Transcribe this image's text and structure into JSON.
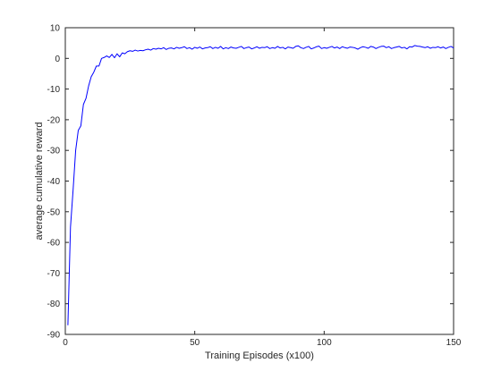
{
  "chart_data": {
    "type": "line",
    "title": "",
    "xlabel": "Training Episodes (x100)",
    "ylabel": "average cumulative reward",
    "xlim": [
      0,
      150
    ],
    "ylim": [
      -90,
      10
    ],
    "xticks": [
      0,
      50,
      100,
      150
    ],
    "yticks": [
      10,
      0,
      -10,
      -20,
      -30,
      -40,
      -50,
      -60,
      -70,
      -80,
      -90
    ],
    "grid": false,
    "legend": "none",
    "series": [
      {
        "color": "#0000ff",
        "x": [
          1,
          2,
          3,
          4,
          5,
          6,
          7,
          8,
          9,
          10,
          11,
          12,
          13,
          14,
          15,
          16,
          17,
          18,
          19,
          20,
          21,
          22,
          23,
          24,
          25,
          26,
          27,
          28,
          29,
          30,
          31,
          32,
          33,
          34,
          35,
          36,
          37,
          38,
          39,
          40,
          41,
          42,
          43,
          44,
          45,
          46,
          47,
          48,
          49,
          50,
          51,
          52,
          53,
          54,
          55,
          56,
          57,
          58,
          59,
          60,
          61,
          62,
          63,
          64,
          65,
          66,
          67,
          68,
          69,
          70,
          71,
          72,
          73,
          74,
          75,
          76,
          77,
          78,
          79,
          80,
          81,
          82,
          83,
          84,
          85,
          86,
          87,
          88,
          89,
          90,
          91,
          92,
          93,
          94,
          95,
          96,
          97,
          98,
          99,
          100,
          101,
          102,
          103,
          104,
          105,
          106,
          107,
          108,
          109,
          110,
          111,
          112,
          113,
          114,
          115,
          116,
          117,
          118,
          119,
          120,
          121,
          122,
          123,
          124,
          125,
          126,
          127,
          128,
          129,
          130,
          131,
          132,
          133,
          134,
          135,
          136,
          137,
          138,
          139,
          140,
          141,
          142,
          143,
          144,
          145,
          146,
          147,
          148,
          149,
          150
        ],
        "y": [
          -87,
          -55,
          -43,
          -30,
          -23.5,
          -22,
          -15,
          -13,
          -9,
          -6,
          -4.5,
          -2.5,
          -2.5,
          0,
          0.3,
          0.8,
          0.3,
          1.3,
          0.2,
          1.5,
          0.5,
          1.8,
          1.5,
          2.2,
          2.5,
          2.3,
          2.7,
          2.4,
          2.6,
          2.5,
          2.8,
          3.0,
          2.7,
          3.2,
          3.0,
          3.3,
          3.1,
          3.5,
          2.9,
          3.3,
          3.4,
          3.1,
          3.6,
          3.3,
          3.5,
          3.8,
          3.2,
          3.5,
          3.0,
          3.6,
          3.3,
          3.7,
          3.1,
          3.4,
          3.5,
          3.8,
          3.2,
          3.6,
          3.3,
          3.9,
          3.1,
          3.5,
          3.2,
          3.7,
          3.4,
          3.3,
          3.6,
          3.9,
          3.2,
          3.5,
          3.7,
          3.1,
          3.4,
          3.8,
          3.3,
          3.6,
          3.5,
          3.8,
          3.2,
          3.5,
          3.3,
          3.9,
          3.4,
          3.6,
          3.1,
          3.7,
          3.5,
          3.3,
          3.9,
          4.1,
          3.5,
          3.2,
          3.6,
          3.9,
          3.1,
          3.4,
          3.8,
          4.0,
          3.2,
          3.5,
          3.3,
          3.6,
          3.9,
          3.4,
          3.7,
          3.2,
          3.8,
          3.5,
          3.3,
          3.7,
          3.6,
          3.4,
          3.0,
          3.5,
          3.8,
          3.6,
          3.3,
          3.9,
          3.7,
          3.2,
          3.6,
          3.9,
          4.0,
          3.5,
          3.8,
          3.2,
          3.5,
          3.7,
          3.9,
          3.4,
          3.6,
          3.1,
          3.8,
          3.7,
          4.2,
          4.0,
          3.9,
          3.7,
          3.5,
          3.8,
          3.3,
          3.6,
          3.5,
          3.8,
          3.4,
          3.7,
          3.2,
          3.6,
          3.9,
          3.4
        ]
      }
    ]
  }
}
